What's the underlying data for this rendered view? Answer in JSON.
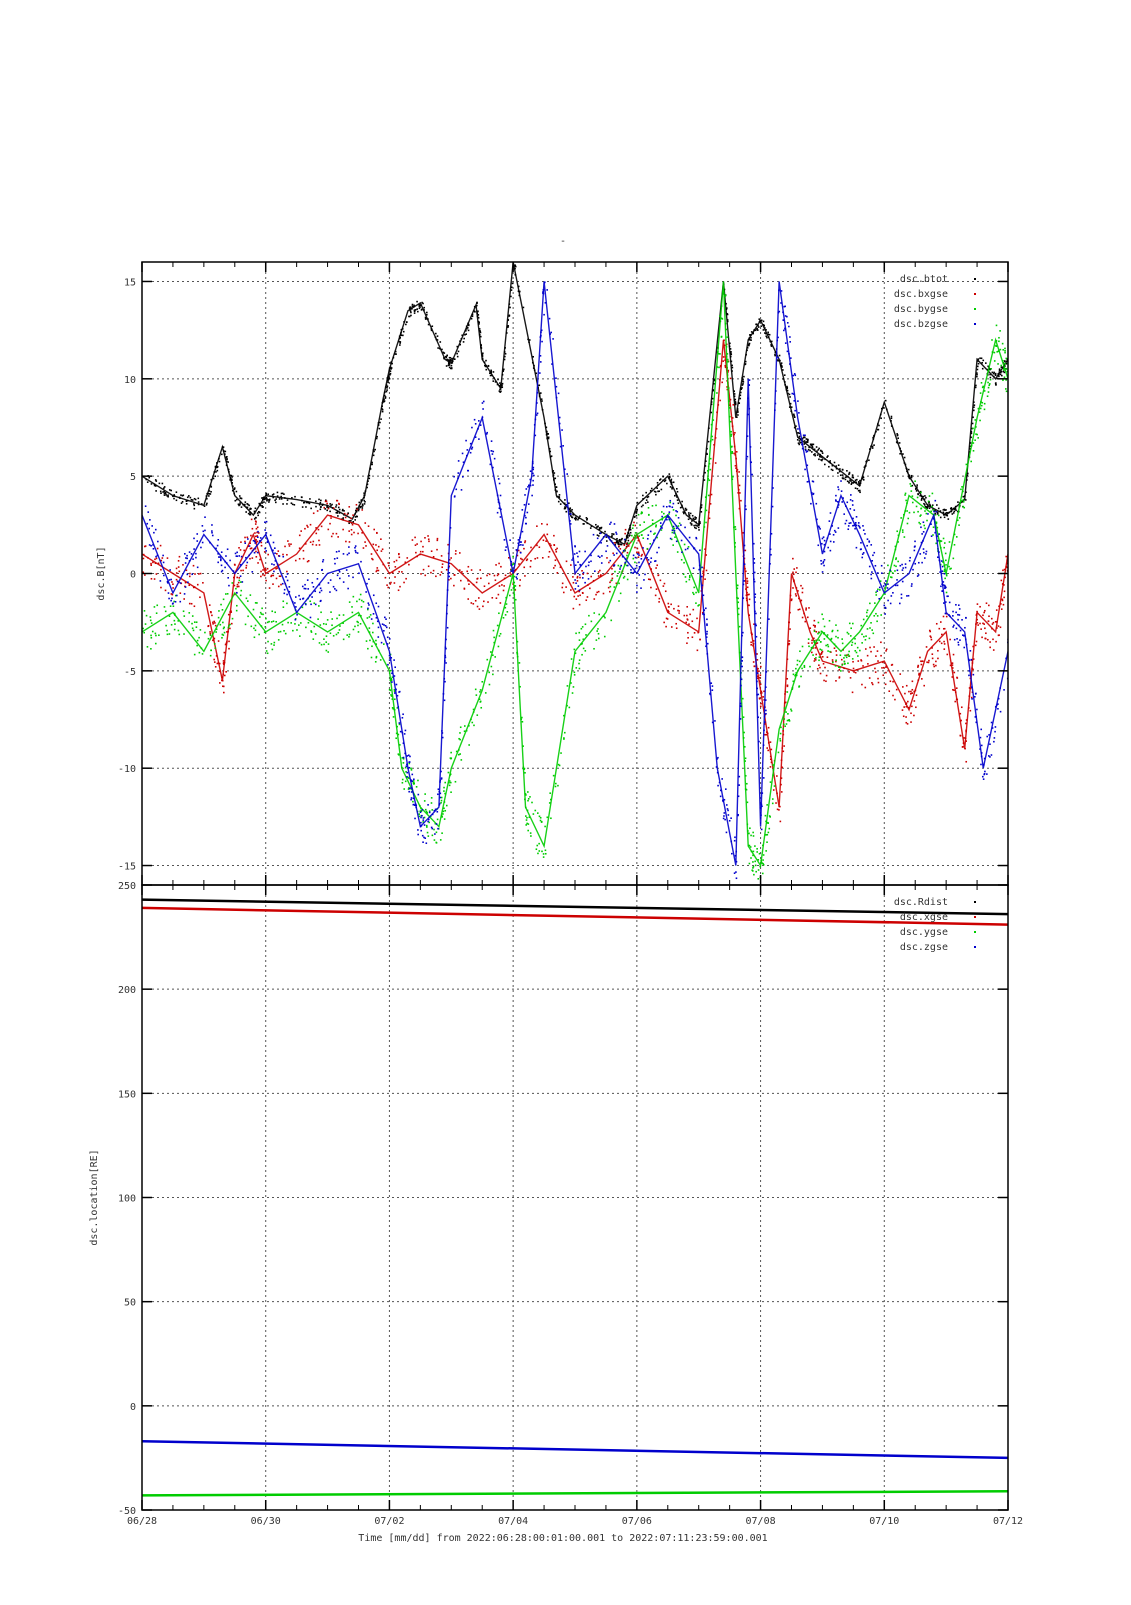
{
  "title": "-",
  "xaxis": {
    "label": "Time [mm/dd]  from 2022:06:28:00:01:00.001  to  2022:07:11:23:59:00.001",
    "range_days": [
      0,
      14
    ],
    "ticks": [
      {
        "day": 0,
        "label": "06/28"
      },
      {
        "day": 2,
        "label": "06/30"
      },
      {
        "day": 4,
        "label": "07/02"
      },
      {
        "day": 6,
        "label": "07/04"
      },
      {
        "day": 8,
        "label": "07/06"
      },
      {
        "day": 10,
        "label": "07/08"
      },
      {
        "day": 12,
        "label": "07/10"
      },
      {
        "day": 14,
        "label": "07/12"
      }
    ]
  },
  "chart_data": [
    {
      "type": "scatter",
      "ylabel": "dsc.B[nT]",
      "ylim": [
        -16,
        16
      ],
      "yticks": [
        -15,
        -10,
        -5,
        0,
        5,
        10,
        15
      ],
      "grid": true,
      "legend_position": "top-right",
      "series": [
        {
          "name": "dsc.btot",
          "color": "#000000",
          "x": [
            0,
            0.5,
            1,
            1.3,
            1.5,
            1.8,
            2,
            2.5,
            3,
            3.4,
            3.6,
            3.9,
            4,
            4.3,
            4.5,
            4.9,
            5,
            5.4,
            5.5,
            5.8,
            6,
            6.5,
            6.7,
            7,
            7.5,
            7.8,
            8,
            8.5,
            8.8,
            9,
            9.4,
            9.6,
            9.8,
            10,
            10.3,
            10.6,
            10.8,
            11,
            11.4,
            11.6,
            12,
            12.4,
            12.7,
            13,
            13.3,
            13.5,
            13.8,
            14
          ],
          "y": [
            5,
            4,
            3.5,
            6.5,
            4,
            3,
            4,
            3.8,
            3.5,
            2.8,
            4,
            9,
            10.5,
            13.5,
            13.9,
            11,
            10.8,
            13.8,
            11,
            9.5,
            16,
            8,
            4,
            3,
            2,
            1.5,
            3.5,
            5,
            3,
            2.5,
            15,
            8,
            12,
            13,
            11,
            7,
            6.5,
            6,
            5,
            4.5,
            8.8,
            5,
            3.5,
            3,
            3.8,
            11,
            10,
            11
          ]
        },
        {
          "name": "dsc.bxgse",
          "color": "#cc0000",
          "x": [
            0,
            0.5,
            1,
            1.3,
            1.5,
            1.8,
            2,
            2.5,
            3,
            3.5,
            4,
            4.5,
            5,
            5.5,
            6,
            6.5,
            7,
            7.5,
            8,
            8.5,
            9,
            9.4,
            9.6,
            9.8,
            10,
            10.3,
            10.5,
            10.8,
            11,
            11.5,
            12,
            12.4,
            12.7,
            13,
            13.3,
            13.5,
            13.8,
            14
          ],
          "y": [
            1,
            0,
            -1,
            -5.5,
            0,
            2,
            0,
            1,
            3,
            2.5,
            0,
            1,
            0.5,
            -1,
            0,
            2,
            -1,
            0,
            2,
            -2,
            -3,
            12,
            6,
            -2,
            -6,
            -12,
            0,
            -3,
            -4.5,
            -5,
            -4.5,
            -7,
            -4,
            -3,
            -9,
            -2,
            -3,
            1
          ]
        },
        {
          "name": "dsc.bygse",
          "color": "#00cc00",
          "x": [
            0,
            0.5,
            1,
            1.5,
            2,
            2.5,
            3,
            3.5,
            4,
            4.2,
            4.5,
            4.8,
            5,
            5.5,
            6,
            6.2,
            6.5,
            7,
            7.5,
            8,
            8.5,
            9,
            9.4,
            9.6,
            9.8,
            10,
            10.3,
            10.6,
            11,
            11.3,
            11.6,
            12,
            12.4,
            12.8,
            13,
            13.5,
            13.8,
            14
          ],
          "y": [
            -3,
            -2,
            -4,
            -1,
            -3,
            -2,
            -3,
            -2,
            -5,
            -10,
            -12,
            -13,
            -10,
            -6,
            0,
            -12,
            -14,
            -4,
            -2,
            2,
            3,
            -1,
            15,
            0,
            -14,
            -15,
            -8,
            -5,
            -3,
            -4,
            -3,
            -1,
            4,
            3,
            0,
            8,
            12,
            10
          ]
        },
        {
          "name": "dsc.bzgse",
          "color": "#0000cc",
          "x": [
            0,
            0.5,
            1,
            1.5,
            2,
            2.5,
            3,
            3.5,
            4,
            4.3,
            4.5,
            4.8,
            5,
            5.5,
            6,
            6.3,
            6.5,
            7,
            7.5,
            8,
            8.5,
            9,
            9.3,
            9.6,
            9.8,
            10,
            10.3,
            10.6,
            11,
            11.3,
            11.6,
            12,
            12.4,
            12.8,
            13,
            13.3,
            13.6,
            14
          ],
          "y": [
            3,
            -1,
            2,
            0,
            2,
            -2,
            0,
            0.5,
            -4,
            -10,
            -13,
            -12,
            4,
            8,
            0,
            5,
            15,
            0,
            2,
            0,
            3,
            1,
            -10,
            -15,
            10,
            -13,
            15,
            8,
            1,
            4,
            2,
            -1,
            0,
            3,
            -2,
            -3,
            -10,
            -4
          ]
        }
      ]
    },
    {
      "type": "scatter",
      "ylabel": "dsc.location[RE]",
      "ylim": [
        -50,
        250
      ],
      "yticks": [
        -50,
        0,
        50,
        100,
        150,
        200,
        250
      ],
      "grid": true,
      "legend_position": "top-right",
      "series": [
        {
          "name": "dsc.Rdist",
          "color": "#000000",
          "x": [
            0,
            14
          ],
          "y": [
            243,
            236
          ]
        },
        {
          "name": "dsc.xgse",
          "color": "#cc0000",
          "x": [
            0,
            14
          ],
          "y": [
            239,
            231
          ]
        },
        {
          "name": "dsc.ygse",
          "color": "#00cc00",
          "x": [
            0,
            14
          ],
          "y": [
            -43,
            -41
          ]
        },
        {
          "name": "dsc.zgse",
          "color": "#0000cc",
          "x": [
            0,
            14
          ],
          "y": [
            -17,
            -25
          ]
        }
      ]
    }
  ]
}
